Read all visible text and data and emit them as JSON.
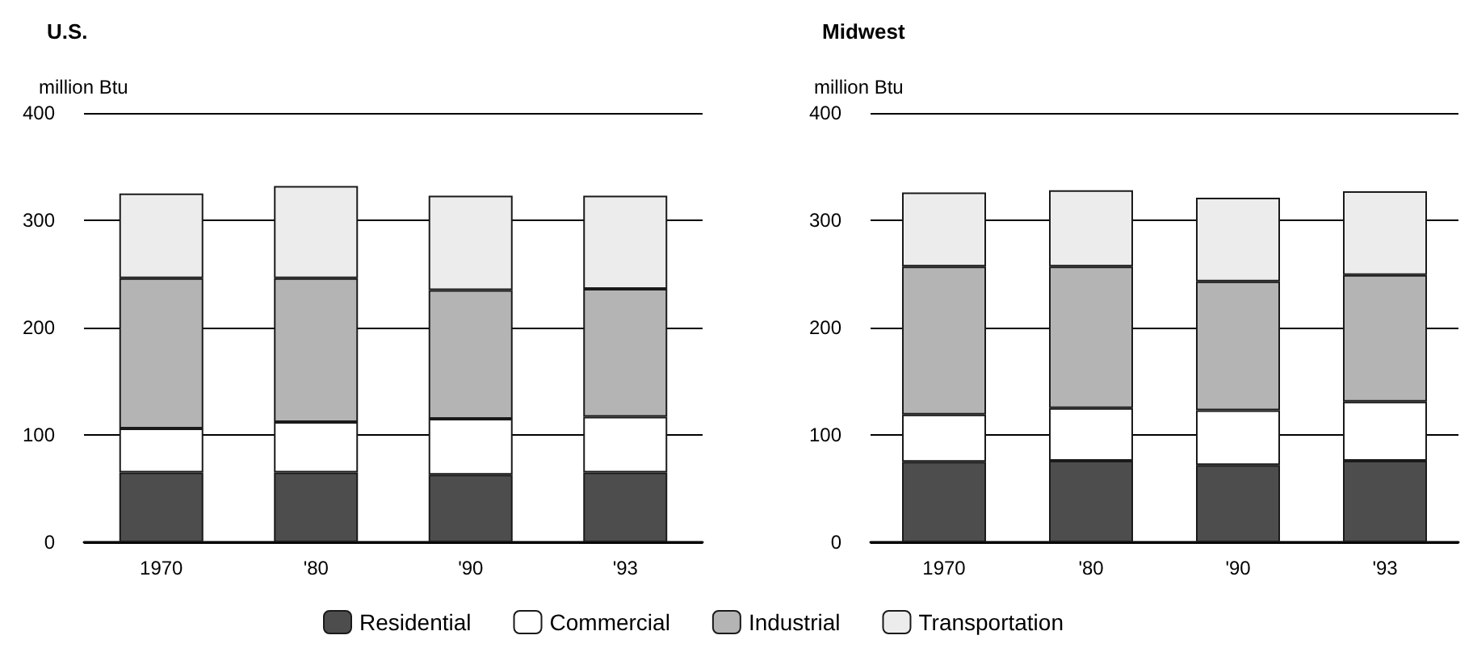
{
  "chart_data": [
    {
      "type": "bar",
      "title": "U.S.",
      "ylabel": "million Btu",
      "categories": [
        "1970",
        "'80",
        "'90",
        "'93"
      ],
      "stacked": true,
      "ylim": [
        0,
        400
      ],
      "yticks": [
        0,
        100,
        200,
        300,
        400
      ],
      "grid": "y",
      "legend": "bottom",
      "series": [
        {
          "name": "Residential",
          "color": "#4d4d4d",
          "values": [
            65,
            65,
            63,
            65
          ]
        },
        {
          "name": "Commercial",
          "color": "#ffffff",
          "values": [
            41,
            47,
            52,
            52
          ]
        },
        {
          "name": "Industrial",
          "color": "#b4b4b4",
          "values": [
            140,
            134,
            120,
            119
          ]
        },
        {
          "name": "Transportation",
          "color": "#ececec",
          "values": [
            79,
            86,
            88,
            87
          ]
        }
      ]
    },
    {
      "type": "bar",
      "title": "Midwest",
      "ylabel": "million Btu",
      "categories": [
        "1970",
        "'80",
        "'90",
        "'93"
      ],
      "stacked": true,
      "ylim": [
        0,
        400
      ],
      "yticks": [
        0,
        100,
        200,
        300,
        400
      ],
      "grid": "y",
      "series": [
        {
          "color": "#4d4d4d",
          "values": [
            75,
            76,
            72,
            76
          ]
        },
        {
          "color": "#ffffff",
          "values": [
            44,
            49,
            51,
            55
          ]
        },
        {
          "color": "#b4b4b4",
          "values": [
            138,
            132,
            120,
            118
          ]
        },
        {
          "color": "#ececec",
          "values": [
            69,
            71,
            78,
            78
          ]
        }
      ]
    }
  ]
}
